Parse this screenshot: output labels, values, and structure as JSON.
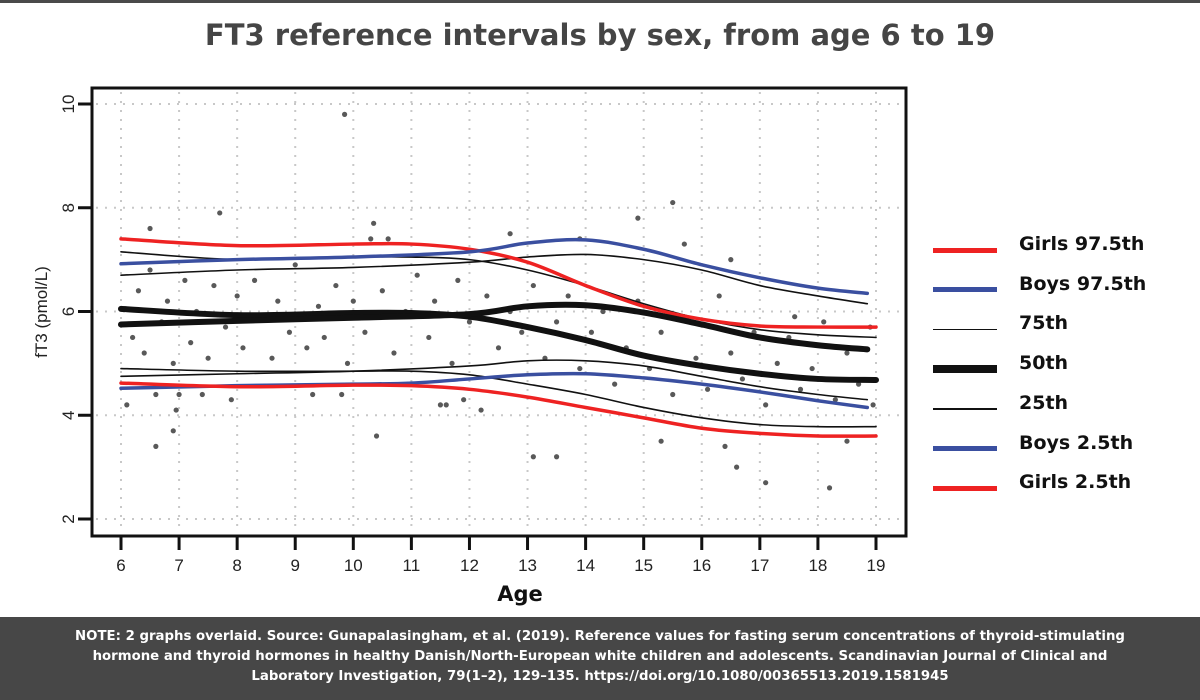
{
  "title": "FT3 reference intervals by sex, from age 6 to 19",
  "footer": {
    "lines": [
      "NOTE: 2 graphs overlaid. Source: Gunapalasingham, et al. (2019). Reference values for fasting serum concentrations of thyroid-stimulating",
      "hormone and thyroid hormones in healthy Danish/North-European white children and adolescents. Scandinavian Journal of Clinical and",
      "Laboratory Investigation, 79(1–2), 129–135. https://doi.org/10.1080/00365513.2019.1581945"
    ]
  },
  "chart_data": {
    "type": "line",
    "title": "FT3 reference intervals by sex, from age 6 to 19",
    "xlabel": "Age",
    "ylabel": "fT3 (pmol/L)",
    "xlim": [
      6,
      19
    ],
    "ylim": [
      2,
      10
    ],
    "xticks": [
      "6",
      "7",
      "8",
      "9",
      "10",
      "11",
      "12",
      "13",
      "14",
      "15",
      "16",
      "17",
      "18",
      "19"
    ],
    "yticks": [
      "2",
      "4",
      "6",
      "8",
      "10"
    ],
    "grid": true,
    "legend_position": "right",
    "colors": {
      "red": "#ee2222",
      "blue": "#3a4fa0",
      "black": "#111111",
      "points": "#595959"
    },
    "legend": [
      {
        "label": "Girls 97.5th",
        "color": "#ee2222",
        "weight": "medium"
      },
      {
        "label": "Boys 97.5th",
        "color": "#3a4fa0",
        "weight": "medium"
      },
      {
        "label": "75th",
        "color": "#111111",
        "weight": "thin"
      },
      {
        "label": "50th",
        "color": "#111111",
        "weight": "thick"
      },
      {
        "label": "25th",
        "color": "#111111",
        "weight": "thin"
      },
      {
        "label": "Boys 2.5th",
        "color": "#3a4fa0",
        "weight": "medium"
      },
      {
        "label": "Girls 2.5th",
        "color": "#ee2222",
        "weight": "medium"
      }
    ],
    "series": [
      {
        "name": "Girls 97.5th",
        "color": "#ee2222",
        "weight": "medium",
        "x": [
          6,
          8,
          10,
          11,
          12,
          13,
          14,
          15,
          16,
          17,
          18,
          19
        ],
        "y": [
          7.4,
          7.27,
          7.3,
          7.3,
          7.2,
          6.95,
          6.5,
          6.1,
          5.85,
          5.72,
          5.7,
          5.7
        ]
      },
      {
        "name": "Boys 97.5th",
        "color": "#3a4fa0",
        "weight": "medium",
        "x": [
          6,
          8,
          10,
          12,
          13,
          14,
          15,
          16,
          17,
          18,
          18.85
        ],
        "y": [
          6.92,
          7.0,
          7.05,
          7.15,
          7.32,
          7.38,
          7.2,
          6.9,
          6.65,
          6.45,
          6.35
        ]
      },
      {
        "color": "#111111",
        "weight": "thin",
        "x": [
          6,
          8,
          10,
          11,
          12,
          13,
          14,
          15,
          16,
          17,
          18,
          19
        ],
        "y": [
          7.15,
          7.0,
          7.05,
          7.05,
          7.0,
          6.8,
          6.5,
          6.15,
          5.85,
          5.65,
          5.55,
          5.5
        ]
      },
      {
        "color": "#111111",
        "weight": "thin",
        "x": [
          6,
          8,
          10,
          12,
          13,
          14,
          15,
          16,
          17,
          18,
          18.85
        ],
        "y": [
          6.7,
          6.8,
          6.85,
          6.95,
          7.05,
          7.1,
          7.0,
          6.8,
          6.5,
          6.3,
          6.15
        ]
      },
      {
        "color": "#111111",
        "weight": "thick",
        "x": [
          6,
          8,
          10,
          11,
          12,
          13,
          14,
          15,
          16,
          17,
          18,
          19
        ],
        "y": [
          6.05,
          5.93,
          5.97,
          5.97,
          5.9,
          5.7,
          5.45,
          5.15,
          4.95,
          4.8,
          4.7,
          4.68
        ]
      },
      {
        "color": "#111111",
        "weight": "thick",
        "x": [
          6,
          8,
          10,
          12,
          13,
          14,
          15,
          16,
          17,
          18,
          18.85
        ],
        "y": [
          5.75,
          5.82,
          5.88,
          5.95,
          6.1,
          6.12,
          5.98,
          5.75,
          5.5,
          5.35,
          5.27
        ]
      },
      {
        "color": "#111111",
        "weight": "thin",
        "x": [
          6,
          8,
          10,
          11,
          12,
          13,
          14,
          15,
          16,
          17,
          18,
          19
        ],
        "y": [
          4.9,
          4.85,
          4.85,
          4.85,
          4.78,
          4.6,
          4.4,
          4.15,
          3.95,
          3.82,
          3.78,
          3.78
        ]
      },
      {
        "color": "#111111",
        "weight": "thin",
        "x": [
          6,
          8,
          10,
          12,
          13,
          14,
          15,
          16,
          17,
          18,
          18.85
        ],
        "y": [
          4.75,
          4.8,
          4.85,
          4.95,
          5.05,
          5.05,
          4.95,
          4.75,
          4.55,
          4.4,
          4.3
        ]
      },
      {
        "name": "Boys 2.5th",
        "color": "#3a4fa0",
        "weight": "medium",
        "x": [
          6,
          8,
          10,
          11,
          12,
          13,
          14,
          15,
          16,
          17,
          18,
          18.85
        ],
        "y": [
          4.52,
          4.57,
          4.6,
          4.62,
          4.7,
          4.78,
          4.8,
          4.72,
          4.6,
          4.45,
          4.28,
          4.15
        ]
      },
      {
        "name": "Girls 2.5th",
        "color": "#ee2222",
        "weight": "medium",
        "x": [
          6,
          8,
          10,
          11,
          12,
          13,
          14,
          15,
          16,
          17,
          18,
          19
        ],
        "y": [
          4.62,
          4.55,
          4.58,
          4.57,
          4.5,
          4.35,
          4.15,
          3.95,
          3.75,
          3.65,
          3.6,
          3.6
        ]
      }
    ],
    "points": [
      [
        6.1,
        4.2
      ],
      [
        6.6,
        3.4
      ],
      [
        6.5,
        7.6
      ],
      [
        6.95,
        4.1
      ],
      [
        6.9,
        3.7
      ],
      [
        7.7,
        7.9
      ],
      [
        6.6,
        4.4
      ],
      [
        7.0,
        4.4
      ],
      [
        7.4,
        4.4
      ],
      [
        7.9,
        4.3
      ],
      [
        9.3,
        4.4
      ],
      [
        9.8,
        4.4
      ],
      [
        9.85,
        9.8
      ],
      [
        10.35,
        7.7
      ],
      [
        10.4,
        3.6
      ],
      [
        10.3,
        7.4
      ],
      [
        10.6,
        7.4
      ],
      [
        11.5,
        4.2
      ],
      [
        11.6,
        4.2
      ],
      [
        12.2,
        4.1
      ],
      [
        11.9,
        4.3
      ],
      [
        12.7,
        7.5
      ],
      [
        13.1,
        3.2
      ],
      [
        13.5,
        3.2
      ],
      [
        13.9,
        7.4
      ],
      [
        14.9,
        7.8
      ],
      [
        15.3,
        3.5
      ],
      [
        15.5,
        8.1
      ],
      [
        15.7,
        7.3
      ],
      [
        16.4,
        3.4
      ],
      [
        16.6,
        3.0
      ],
      [
        16.5,
        7.0
      ],
      [
        17.1,
        2.7
      ],
      [
        17.6,
        5.9
      ],
      [
        18.2,
        2.6
      ],
      [
        18.5,
        3.5
      ],
      [
        6.2,
        5.5
      ],
      [
        6.3,
        6.4
      ],
      [
        6.4,
        5.2
      ],
      [
        6.5,
        6.8
      ],
      [
        6.7,
        5.8
      ],
      [
        6.8,
        6.2
      ],
      [
        6.9,
        5.0
      ],
      [
        7.1,
        6.6
      ],
      [
        7.2,
        5.4
      ],
      [
        7.3,
        6.0
      ],
      [
        7.5,
        5.1
      ],
      [
        7.6,
        6.5
      ],
      [
        7.8,
        5.7
      ],
      [
        8.0,
        6.3
      ],
      [
        8.1,
        5.3
      ],
      [
        8.3,
        6.6
      ],
      [
        8.4,
        5.9
      ],
      [
        8.6,
        5.1
      ],
      [
        8.7,
        6.2
      ],
      [
        8.9,
        5.6
      ],
      [
        9.0,
        6.9
      ],
      [
        9.2,
        5.3
      ],
      [
        9.4,
        6.1
      ],
      [
        9.5,
        5.5
      ],
      [
        9.7,
        6.5
      ],
      [
        9.9,
        5.0
      ],
      [
        10.0,
        6.2
      ],
      [
        10.2,
        5.6
      ],
      [
        10.5,
        6.4
      ],
      [
        10.7,
        5.2
      ],
      [
        10.9,
        6.0
      ],
      [
        11.1,
        6.7
      ],
      [
        11.3,
        5.5
      ],
      [
        11.4,
        6.2
      ],
      [
        11.7,
        5.0
      ],
      [
        11.8,
        6.6
      ],
      [
        12.0,
        5.8
      ],
      [
        12.3,
        6.3
      ],
      [
        12.5,
        5.3
      ],
      [
        12.7,
        6.0
      ],
      [
        12.9,
        5.6
      ],
      [
        13.1,
        6.5
      ],
      [
        13.3,
        5.1
      ],
      [
        13.5,
        5.8
      ],
      [
        13.7,
        6.3
      ],
      [
        13.9,
        4.9
      ],
      [
        14.1,
        5.6
      ],
      [
        14.3,
        6.0
      ],
      [
        14.5,
        4.6
      ],
      [
        14.7,
        5.3
      ],
      [
        14.9,
        6.2
      ],
      [
        15.1,
        4.9
      ],
      [
        15.3,
        5.6
      ],
      [
        15.5,
        4.4
      ],
      [
        15.7,
        5.9
      ],
      [
        15.9,
        5.1
      ],
      [
        16.1,
        4.5
      ],
      [
        16.3,
        6.3
      ],
      [
        16.5,
        5.2
      ],
      [
        16.7,
        4.7
      ],
      [
        16.9,
        5.6
      ],
      [
        17.1,
        4.2
      ],
      [
        17.3,
        5.0
      ],
      [
        17.5,
        5.5
      ],
      [
        17.7,
        4.5
      ],
      [
        17.9,
        4.9
      ],
      [
        18.1,
        5.8
      ],
      [
        18.3,
        4.3
      ],
      [
        18.5,
        5.2
      ],
      [
        18.7,
        4.6
      ],
      [
        18.9,
        5.7
      ],
      [
        18.95,
        4.2
      ]
    ]
  }
}
